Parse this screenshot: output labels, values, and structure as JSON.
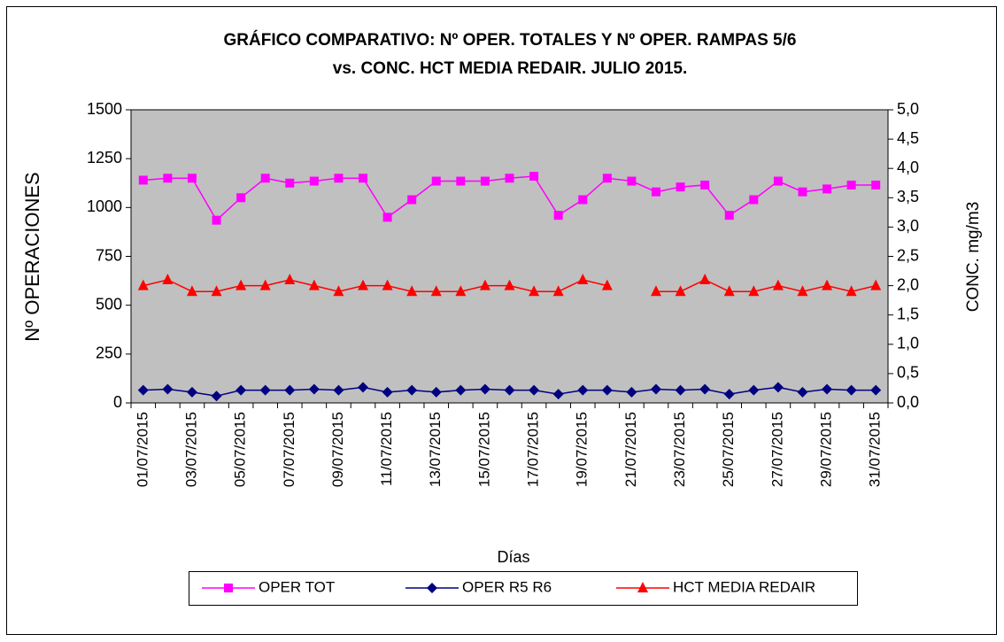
{
  "chart_data": {
    "type": "line",
    "title": [
      "GRÁFICO COMPARATIVO: Nº OPER. TOTALES Y Nº OPER. RAMPAS 5/6",
      "vs. CONC. HCT MEDIA REDAIR. JULIO 2015."
    ],
    "x_label": "Días",
    "y_label": "Nº OPERACIONES",
    "y2_label": "CONC. mg/m3",
    "categories": [
      "01/07/2015",
      null,
      "03/07/2015",
      null,
      "05/07/2015",
      null,
      "07/07/2015",
      null,
      "09/07/2015",
      null,
      "11/07/2015",
      null,
      "13/07/2015",
      null,
      "15/07/2015",
      null,
      "17/07/2015",
      null,
      "19/07/2015",
      null,
      "21/07/2015",
      null,
      "23/07/2015",
      null,
      "25/07/2015",
      null,
      "27/07/2015",
      null,
      "29/07/2015",
      null,
      "31/07/2015"
    ],
    "ylim": [
      0,
      1500
    ],
    "yticks": [
      0,
      250,
      500,
      750,
      1000,
      1250,
      1500
    ],
    "y2lim": [
      0,
      5
    ],
    "y2ticks": [
      {
        "value": 0,
        "label": "0,0"
      },
      {
        "value": 0.5,
        "label": "0,5"
      },
      {
        "value": 1,
        "label": "1,0"
      },
      {
        "value": 1.5,
        "label": "1,5"
      },
      {
        "value": 2,
        "label": "2,0"
      },
      {
        "value": 2.5,
        "label": "2,5"
      },
      {
        "value": 3,
        "label": "3,0"
      },
      {
        "value": 3.5,
        "label": "3,5"
      },
      {
        "value": 4,
        "label": "4,0"
      },
      {
        "value": 4.5,
        "label": "4,5"
      },
      {
        "value": 5,
        "label": "5,0"
      }
    ],
    "grid": false,
    "plot_background": "#c0c0c0",
    "legend": "bottom",
    "series": [
      {
        "name": "OPER TOT",
        "color": "#ff00ff",
        "marker": "square",
        "values": [
          1140,
          1150,
          1150,
          935,
          1050,
          1150,
          1125,
          1135,
          1150,
          1150,
          950,
          1040,
          1135,
          1135,
          1135,
          1150,
          1160,
          960,
          1040,
          1150,
          1135,
          1080,
          1105,
          1115,
          960,
          1040,
          1135,
          1080,
          1095,
          1115,
          1115
        ]
      },
      {
        "name": "OPER R5 R6",
        "color": "#000080",
        "marker": "diamond",
        "values": [
          65,
          70,
          55,
          35,
          65,
          65,
          65,
          70,
          65,
          80,
          55,
          65,
          55,
          65,
          70,
          65,
          65,
          45,
          65,
          65,
          55,
          70,
          65,
          70,
          45,
          65,
          80,
          55,
          70,
          65,
          65
        ]
      },
      {
        "name": "HCT MEDIA REDAIR",
        "color": "#ff0000",
        "marker": "triangle",
        "axis": "y2",
        "values": [
          2.0,
          2.1,
          1.9,
          1.9,
          2.0,
          2.0,
          2.1,
          2.0,
          1.9,
          2.0,
          2.0,
          1.9,
          1.9,
          1.9,
          2.0,
          2.0,
          1.9,
          1.9,
          2.1,
          2.0,
          null,
          1.9,
          1.9,
          2.1,
          1.9,
          1.9,
          2.0,
          1.9,
          2.0,
          1.9,
          2.0
        ]
      }
    ]
  }
}
